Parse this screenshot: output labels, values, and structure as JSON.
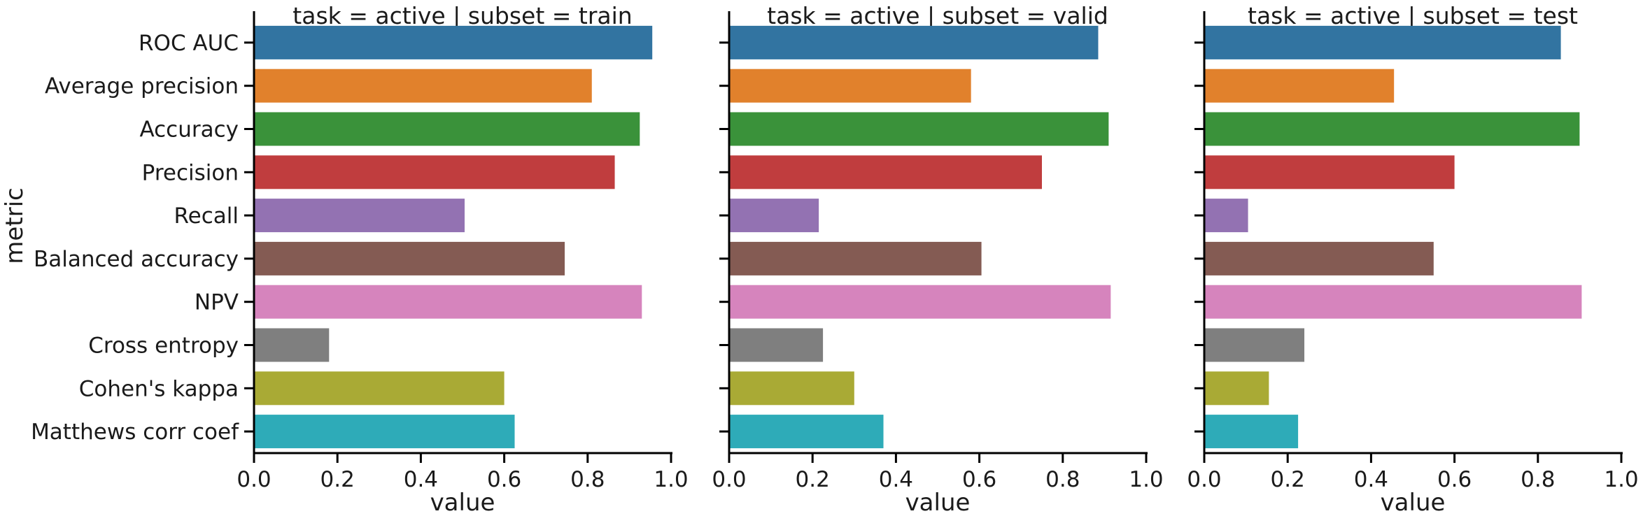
{
  "chart_data": {
    "type": "bar",
    "orientation": "horizontal",
    "ylabel": "metric",
    "xlabel": "value",
    "xlim": [
      0,
      1.0
    ],
    "xticks": [
      "0.0",
      "0.2",
      "0.4",
      "0.6",
      "0.8",
      "1.0"
    ],
    "grid": false,
    "categories": [
      "ROC AUC",
      "Average precision",
      "Accuracy",
      "Precision",
      "Recall",
      "Balanced accuracy",
      "NPV",
      "Cross entropy",
      "Cohen's kappa",
      "Matthews corr coef"
    ],
    "colors": [
      "#3274a1",
      "#e1812c",
      "#3a923a",
      "#c03d3e",
      "#9372b2",
      "#845b53",
      "#d684bd",
      "#7f7f7f",
      "#a9aa35",
      "#2eabb8"
    ],
    "panels": [
      {
        "title": "task = active | subset = train",
        "values": [
          0.955,
          0.81,
          0.925,
          0.865,
          0.505,
          0.745,
          0.93,
          0.18,
          0.6,
          0.625
        ]
      },
      {
        "title": "task = active | subset = valid",
        "values": [
          0.885,
          0.58,
          0.91,
          0.75,
          0.215,
          0.605,
          0.915,
          0.225,
          0.3,
          0.37
        ]
      },
      {
        "title": "task = active | subset = test",
        "values": [
          0.855,
          0.455,
          0.9,
          0.6,
          0.105,
          0.55,
          0.905,
          0.24,
          0.155,
          0.225
        ]
      }
    ]
  }
}
